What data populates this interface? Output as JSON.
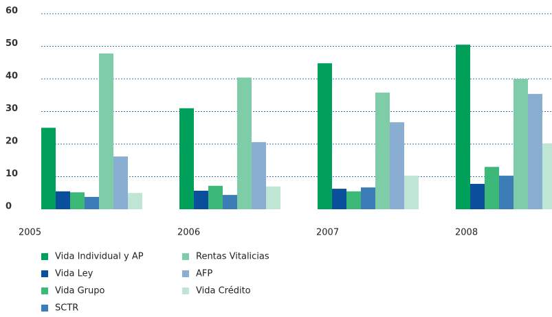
{
  "chart_data": {
    "type": "bar",
    "categories": [
      "2005",
      "2006",
      "2007",
      "2008"
    ],
    "series": [
      {
        "name": "Vida Individual y AP",
        "color": "#00a05a",
        "values": [
          25,
          31,
          44.8,
          50.5
        ]
      },
      {
        "name": "Vida Ley",
        "color": "#0a4f9c",
        "values": [
          5.5,
          5.7,
          6.3,
          7.8
        ]
      },
      {
        "name": "Vida Grupo",
        "color": "#3cb878",
        "values": [
          5.2,
          7.2,
          5.5,
          13
        ]
      },
      {
        "name": "SCTR",
        "color": "#3c7db8",
        "values": [
          3.8,
          4.4,
          6.7,
          10.3
        ]
      },
      {
        "name": "Rentas Vitalicias",
        "color": "#7fcca8",
        "values": [
          47.8,
          40.4,
          35.8,
          40
        ]
      },
      {
        "name": "AFP",
        "color": "#8aaed2",
        "values": [
          16.2,
          20.6,
          26.7,
          35.4
        ]
      },
      {
        "name": "Vida Crédito",
        "color": "#bfe6d4",
        "values": [
          5,
          7,
          10.3,
          20.2
        ]
      }
    ],
    "ylim": [
      0,
      60
    ],
    "yticks": [
      0,
      10,
      20,
      30,
      40,
      50,
      60
    ],
    "grid": true
  }
}
